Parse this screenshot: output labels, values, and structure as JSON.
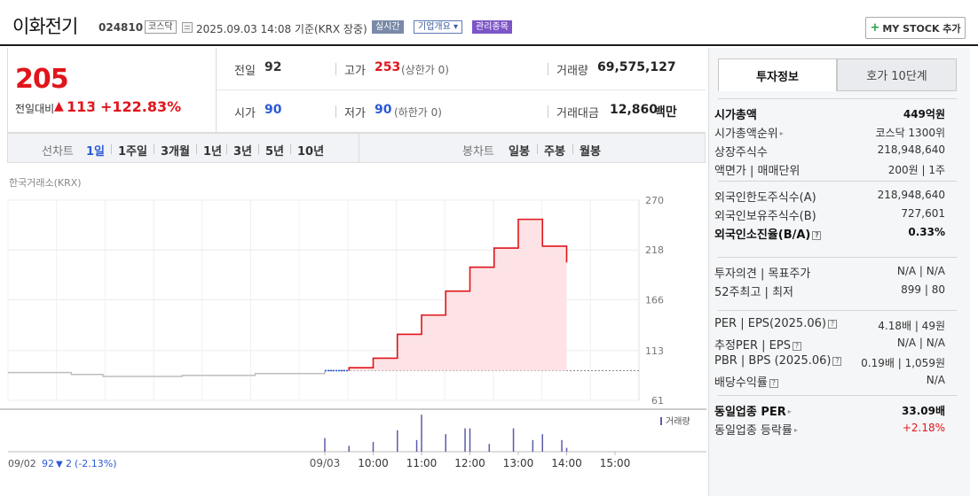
{
  "header": {
    "name": "이화전기",
    "code": "024810",
    "market": "코스닥",
    "datetime": "2025.09.03 14:08  기준(KRX 장중)",
    "btn_realtime": "실시간",
    "btn_company": "기업개요 ▾",
    "btn_managed": "관리종목",
    "mystock_plus": "+",
    "mystock_label": "MY STOCK 추가"
  },
  "price": {
    "current": "205",
    "change_label": "전일대비",
    "change_arrow": "▲",
    "change_value": "113",
    "change_percent": "+122.83%"
  },
  "info": {
    "prev_label": "전일",
    "prev_value": "92",
    "high_label": "고가",
    "high_value": "253",
    "high_sub": "(상한가 0)",
    "volume_label": "거래량",
    "volume_value": "69,575,127",
    "open_label": "시가",
    "open_value": "90",
    "low_label": "저가",
    "low_value": "90",
    "low_sub": "(하한가 0)",
    "amount_label": "거래대금",
    "amount_value": "12,860",
    "amount_unit": "백만"
  },
  "chart_tabs": {
    "line_label": "선차트",
    "periods": [
      "1일",
      "1주일",
      "3개월",
      "1년",
      "3년",
      "5년",
      "10년"
    ],
    "candle_label": "봉차트",
    "candles": [
      "일봉",
      "주봉",
      "월봉"
    ]
  },
  "exchange_label": "한국거래소(KRX)",
  "colors": {
    "up": "#e0151b",
    "down": "#2b5ad6",
    "accent": "#7d55c7"
  },
  "chart_data": {
    "type": "line",
    "y_ticks": [
      "270",
      "218",
      "166",
      "113",
      "61"
    ],
    "ylim": [
      61,
      270
    ],
    "x_ticks": [
      "09/03",
      "10:00",
      "11:00",
      "12:00",
      "13:00",
      "14:00",
      "15:00"
    ],
    "prev_day_label": "09/02",
    "prev_day_close": "92",
    "prev_day_change_arrow": "▼",
    "prev_day_change": "2",
    "prev_day_change_pct": "(-2.13%)",
    "volume_legend": "거래량",
    "prev_day_series": [
      [
        0,
        90
      ],
      [
        0.2,
        90
      ],
      [
        0.2,
        88
      ],
      [
        0.3,
        88
      ],
      [
        0.3,
        86
      ],
      [
        0.55,
        86
      ],
      [
        0.55,
        87
      ],
      [
        0.78,
        87
      ],
      [
        0.78,
        89
      ],
      [
        1.0,
        89
      ],
      [
        1.0,
        92
      ]
    ],
    "today_series": [
      [
        0.0,
        92
      ],
      [
        0.5,
        92
      ],
      [
        0.5,
        95
      ],
      [
        1.0,
        95
      ],
      [
        1.0,
        105
      ],
      [
        1.5,
        105
      ],
      [
        1.5,
        130
      ],
      [
        2.0,
        130
      ],
      [
        2.0,
        150
      ],
      [
        2.5,
        150
      ],
      [
        2.5,
        175
      ],
      [
        3.0,
        175
      ],
      [
        3.0,
        200
      ],
      [
        3.5,
        200
      ],
      [
        3.5,
        220
      ],
      [
        4.0,
        220
      ],
      [
        4.0,
        250
      ],
      [
        4.5,
        250
      ],
      [
        4.5,
        222
      ],
      [
        5.0,
        222
      ],
      [
        5.0,
        205
      ]
    ],
    "volume_bars": [
      [
        0.0,
        0.35
      ],
      [
        0.5,
        0.15
      ],
      [
        1.0,
        0.25
      ],
      [
        1.5,
        0.55
      ],
      [
        1.9,
        0.3
      ],
      [
        2.0,
        0.95
      ],
      [
        2.5,
        0.45
      ],
      [
        2.9,
        0.6
      ],
      [
        3.0,
        0.6
      ],
      [
        3.4,
        0.2
      ],
      [
        3.9,
        0.6
      ],
      [
        4.3,
        0.3
      ],
      [
        4.5,
        0.45
      ],
      [
        4.9,
        0.3
      ],
      [
        5.0,
        0.1
      ]
    ]
  },
  "side": {
    "tab_invest": "투자정보",
    "tab_orderbook": "호가 10단계",
    "rows1": [
      {
        "l": "시가총액",
        "r": "449억원"
      },
      {
        "l": "시가총액순위",
        "r": "코스닥 1300위"
      },
      {
        "l": "상장주식수",
        "r": "218,948,640"
      },
      {
        "l": "액면가 | 매매단위",
        "r": "200원 | 1주"
      }
    ],
    "rows2": [
      {
        "l": "외국인한도주식수(A)",
        "r": "218,948,640"
      },
      {
        "l": "외국인보유주식수(B)",
        "r": "727,601"
      },
      {
        "l": "외국인소진율(B/A)",
        "r": "0.33%"
      }
    ],
    "rows3": [
      {
        "l": "투자의견 | 목표주가",
        "r": "N/A | N/A"
      },
      {
        "l": "52주최고 | 최저",
        "r": "899 | 80"
      }
    ],
    "rows4": [
      {
        "l": "PER | EPS(2025.06)",
        "r": "4.18배 | 49원"
      },
      {
        "l": "추정PER | EPS",
        "r": "N/A | N/A"
      },
      {
        "l": "PBR | BPS (2025.06)",
        "r": "0.19배 | 1,059원"
      },
      {
        "l": "배당수익률",
        "r": "N/A"
      }
    ],
    "rows5": [
      {
        "l": "동일업종 PER",
        "r": "33.09배"
      },
      {
        "l": "동일업종 등락률",
        "r": "+2.18%"
      }
    ]
  }
}
